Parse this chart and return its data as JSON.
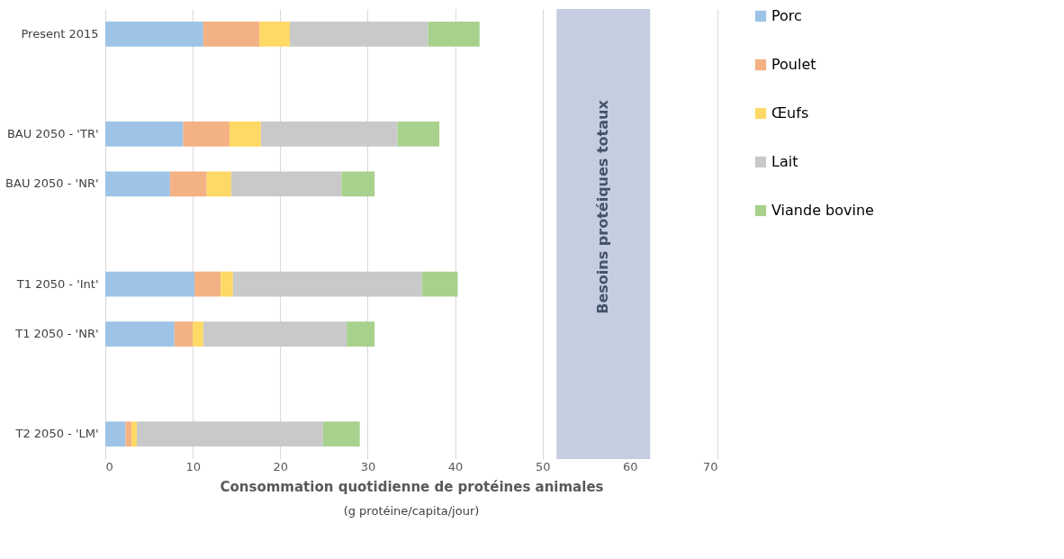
{
  "chart_data": {
    "type": "bar",
    "orientation": "horizontal",
    "stacked": true,
    "categories": [
      "Present 2015",
      null,
      "BAU 2050 - 'TR'",
      "BAU 2050 - 'NR'",
      null,
      "T1 2050 - 'Int'",
      "T1 2050 - 'NR'",
      null,
      "T2 2050 - 'LM'"
    ],
    "series": [
      {
        "name": "Porc",
        "color": "#9dc3e6",
        "values": [
          11.2,
          null,
          8.9,
          7.4,
          null,
          10.2,
          7.9,
          null,
          2.3
        ]
      },
      {
        "name": "Poulet",
        "color": "#f4b183",
        "values": [
          6.4,
          null,
          5.3,
          4.2,
          null,
          3.0,
          2.1,
          null,
          0.7
        ]
      },
      {
        "name": "Œufs",
        "color": "#ffd966",
        "values": [
          3.5,
          null,
          3.6,
          2.8,
          null,
          1.4,
          1.2,
          null,
          0.6
        ]
      },
      {
        "name": "Lait",
        "color": "#c9c9c9",
        "values": [
          15.8,
          null,
          15.6,
          12.6,
          null,
          21.6,
          16.4,
          null,
          21.3
        ]
      },
      {
        "name": "Viande bovine",
        "color": "#a9d18e",
        "values": [
          5.9,
          null,
          4.8,
          3.8,
          null,
          4.1,
          3.2,
          null,
          4.2
        ]
      }
    ],
    "xlim": [
      0,
      70
    ],
    "xticks": [
      0,
      10,
      20,
      30,
      40,
      50,
      60,
      70
    ],
    "xlabel": "Consommation quotidienne de protéines animales",
    "annotations": [
      "(g protéine/capita/jour)"
    ],
    "bands": [
      {
        "axis": "x",
        "from": 51.6,
        "to": 62.3,
        "label": "Besoins protéiques totaux",
        "color": "#c5cde0"
      }
    ],
    "grid": "x",
    "legend": "right"
  }
}
